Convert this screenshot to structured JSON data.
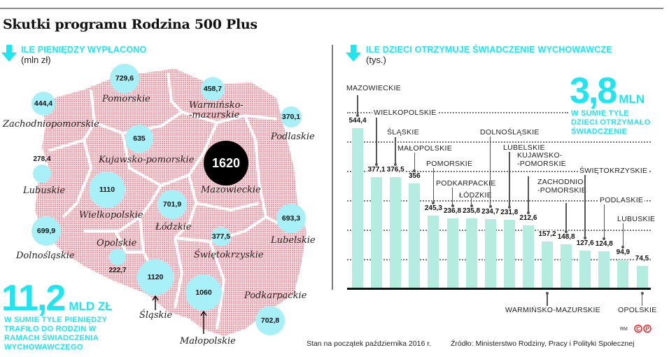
{
  "title": "Skutki programu Rodzina 500 Plus",
  "left_panel": {
    "heading": "ILE PIENIĘDZY WYPŁACONO",
    "unit": "(mln zł)",
    "regions": [
      {
        "name": "Pomorskie",
        "value": "729,6"
      },
      {
        "name": "Zachodniopomorskie",
        "value": "444,4"
      },
      {
        "name": "Warmińsko-\n-mazurskie",
        "value": "458,7"
      },
      {
        "name": "Podlaskie",
        "value": "370,1"
      },
      {
        "name": "Kujawsko-pomorskie",
        "value": "635"
      },
      {
        "name": "Lubuskie",
        "value": "278,4"
      },
      {
        "name": "Mazowieckie",
        "value": "1620"
      },
      {
        "name": "Wielkopolskie",
        "value": "1110"
      },
      {
        "name": "Łódzkie",
        "value": "701,9"
      },
      {
        "name": "Lubelskie",
        "value": "693,3"
      },
      {
        "name": "Dolnośląskie",
        "value": "699,9"
      },
      {
        "name": "Opolskie",
        "value": "222,7"
      },
      {
        "name": "Świętokrzyskie",
        "value": "377,5"
      },
      {
        "name": "Śląskie",
        "value": "1120"
      },
      {
        "name": "Małopolskie",
        "value": "1060"
      },
      {
        "name": "Podkarpackie",
        "value": "702,8"
      }
    ],
    "total_value": "11,2",
    "total_unit": "MLD ZŁ",
    "total_desc": "W SUMIE TYLE PIENIĘDZY TRAFIŁO DO RODZIN W RAMACH ŚWIADCZENIA WYCHOWAWCZEGO"
  },
  "right_panel": {
    "heading": "ILE DZIECI OTRZYMUJE ŚWIADCZENIE WYCHOWAWCZE",
    "unit": "(tys.)",
    "total_value": "3,8",
    "total_unit": "MLN",
    "total_desc": "W SUMIE TYLE DZIECI OTRZYMAŁO ŚWIADCZENIE"
  },
  "footer": {
    "date_note": "Stan na początek października 2016 r.",
    "source": "Źródło: Ministerstwo Rodziny, Pracy i Polityki Społecznej",
    "author": "RM"
  },
  "colors": {
    "accent_cyan": "#1ee6f0",
    "bubble": "#a8f0f7",
    "bar": "#b5ece0",
    "map_fill": "#f2a9b3",
    "copyright_red": "#e8262b"
  },
  "chart_data": [
    {
      "type": "bar",
      "title": "ILE DZIECI OTRZYMUJE ŚWIADCZENIE WYCHOWAWCZE",
      "ylabel": "(tys.)",
      "xlabel": "",
      "categories": [
        "MAZOWIECKIE",
        "WIELKOPOLSKIE",
        "ŚLĄSKIE",
        "MAŁOPOLSKIE",
        "POMORSKIE",
        "PODKARPACKIE",
        "ŁÓDZKIE",
        "DOLNOŚLĄSKIE",
        "LUBELSKIE",
        "KUJAWSKO-POMORSKIE",
        "WARMIŃSKO-MAZURSKIE",
        "ZACHODNIO-POMORSKIE",
        "ŚWIĘTOKRZYSKIE",
        "PODLASKIE",
        "LUBUSKIE",
        "OPOLSKIE"
      ],
      "values": [
        544.4,
        377.1,
        376.5,
        356,
        245.3,
        236.8,
        235.8,
        234.7,
        231.8,
        212.6,
        157.2,
        148.8,
        127.6,
        124.8,
        94.9,
        74.5
      ],
      "value_labels": [
        "544,4",
        "377,1",
        "376,5",
        "356",
        "245,3",
        "236,8",
        "235,8",
        "234,7",
        "231,8",
        "212,6",
        "157,2",
        "148,8",
        "127,6",
        "124,8",
        "94,9",
        "74,5"
      ],
      "ylim": [
        0,
        600
      ],
      "grid": true,
      "annotation": "3,8 MLN — W SUMIE TYLE DZIECI OTRZYMAŁO ŚWIADCZENIE"
    },
    {
      "type": "bubble-map",
      "title": "ILE PIENIĘDZY WYPŁACONO",
      "unit": "(mln zł)",
      "categories": [
        "Mazowieckie",
        "Śląskie",
        "Wielkopolskie",
        "Małopolskie",
        "Pomorskie",
        "Podkarpackie",
        "Łódzkie",
        "Dolnośląskie",
        "Lubelskie",
        "Kujawsko-pomorskie",
        "Warmińsko-mazurskie",
        "Zachodniopomorskie",
        "Świętokrzyskie",
        "Podlaskie",
        "Lubuskie",
        "Opolskie"
      ],
      "values": [
        1620,
        1120,
        1110,
        1060,
        729.6,
        702.8,
        701.9,
        699.9,
        693.3,
        635,
        458.7,
        444.4,
        377.5,
        370.1,
        278.4,
        222.7
      ],
      "annotation": "11,2 MLD ZŁ — W SUMIE TYLE PIENIĘDZY TRAFIŁO DO RODZIN W RAMACH ŚWIADCZENIA WYCHOWAWCZEGO"
    }
  ]
}
